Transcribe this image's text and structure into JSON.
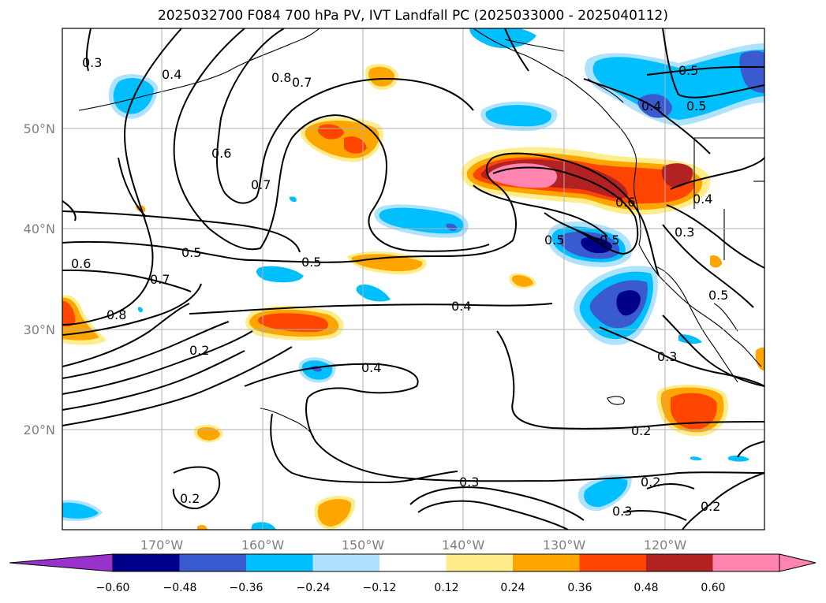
{
  "title": "2025032700 F084 700 hPa PV, IVT Landfall PC (2025033000 - 2025040112)",
  "map": {
    "lat_labels": [
      "50°N",
      "40°N",
      "30°N",
      "20°N"
    ],
    "lon_labels": [
      "170°W",
      "160°W",
      "150°W",
      "140°W",
      "130°W",
      "120°W"
    ],
    "contour_labels": [
      "0.3",
      "0.4",
      "0.8",
      "0.7",
      "0.6",
      "0.7",
      "0.5",
      "0.4",
      "0.5",
      "0.5",
      "0.6",
      "0.5",
      "0.7",
      "0.8",
      "0.5",
      "0.4",
      "0.2",
      "0.4",
      "0.3",
      "0.5",
      "0.3",
      "0.2",
      "0.2",
      "0.3",
      "0.2",
      "0.3",
      "0.2",
      "0.6",
      "0.4",
      "0.5"
    ]
  },
  "colorbar": {
    "ticks": [
      "−0.60",
      "−0.48",
      "−0.36",
      "−0.24",
      "−0.12",
      "0.12",
      "0.24",
      "0.36",
      "0.48",
      "0.60"
    ],
    "colors": [
      "#9932cc",
      "#00008b",
      "#3a5bd0",
      "#00bfff",
      "#aee2ff",
      "#ffffff",
      "#ffec8b",
      "#ffa500",
      "#ff4500",
      "#b22222",
      "#ff85b0",
      "#ff85b0"
    ]
  }
}
